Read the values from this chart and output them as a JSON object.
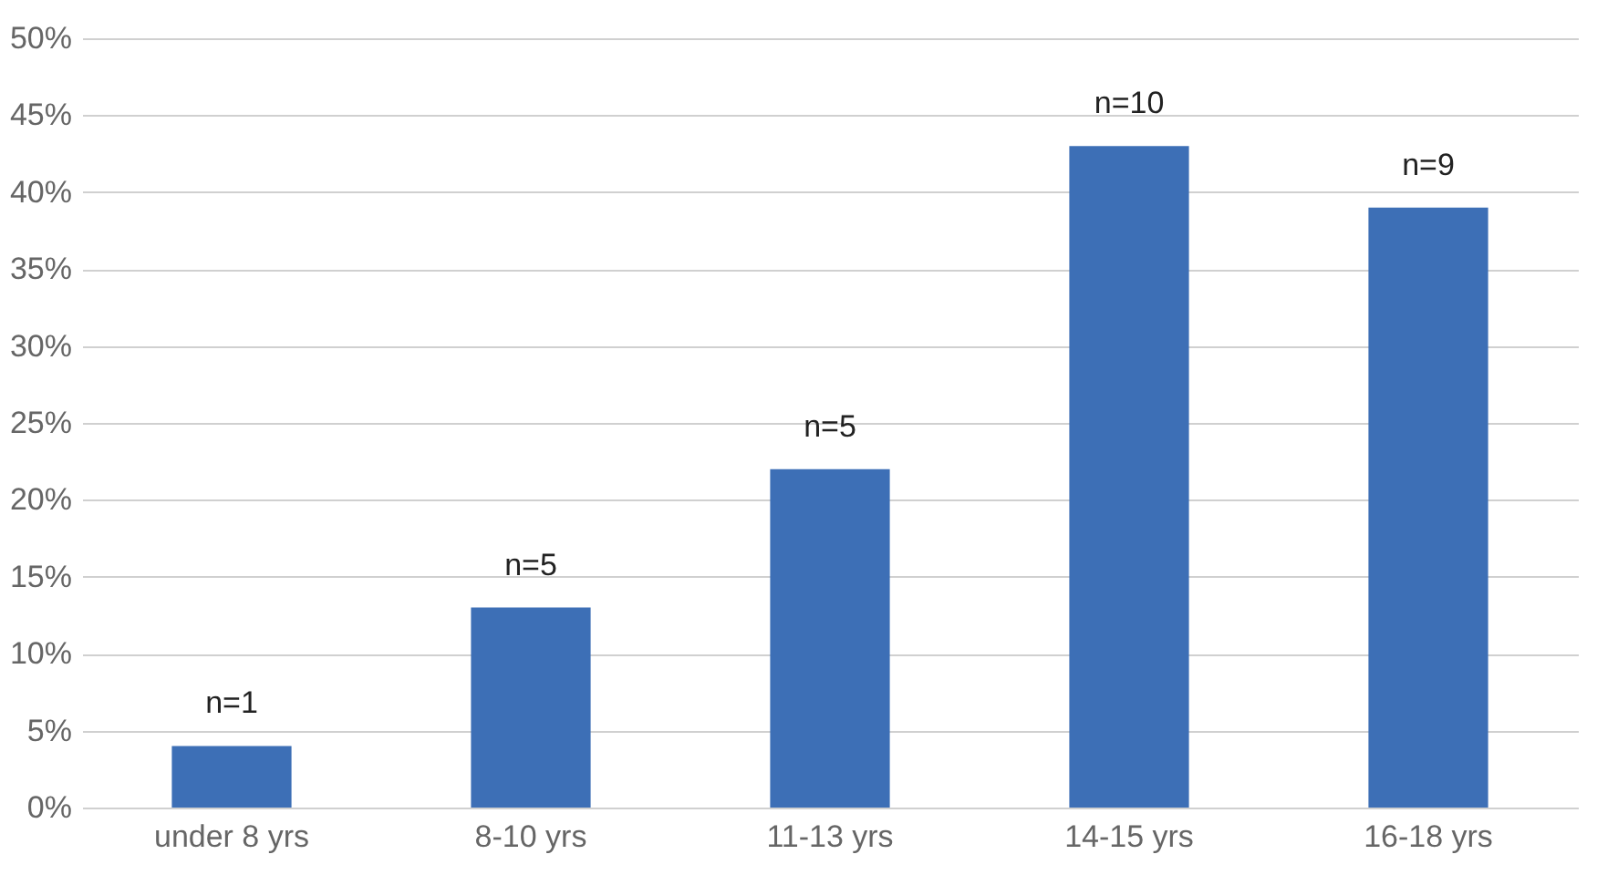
{
  "chart_data": {
    "type": "bar",
    "categories": [
      "under 8 yrs",
      "8-10 yrs",
      "11-13 yrs",
      "14-15 yrs",
      "16-18 yrs"
    ],
    "values": [
      4,
      13,
      22,
      43,
      39
    ],
    "color": "#3d6fb6",
    "ylim": [
      0,
      50
    ],
    "yticks": [
      {
        "value": 0,
        "label": "0%"
      },
      {
        "value": 5,
        "label": "5%"
      },
      {
        "value": 10,
        "label": "10%"
      },
      {
        "value": 15,
        "label": "15%"
      },
      {
        "value": 20,
        "label": "20%"
      },
      {
        "value": 25,
        "label": "25%"
      },
      {
        "value": 30,
        "label": "30%"
      },
      {
        "value": 35,
        "label": "35%"
      },
      {
        "value": 40,
        "label": "40%"
      },
      {
        "value": 45,
        "label": "45%"
      },
      {
        "value": 50,
        "label": "50%"
      }
    ],
    "grid": "y",
    "annotations": [
      {
        "text": "n=1",
        "x": "under 8 yrs",
        "y": 4
      },
      {
        "text": "n=5",
        "x": "8-10 yrs",
        "y": 13
      },
      {
        "text": "n=5",
        "x": "11-13 yrs",
        "y": 22
      },
      {
        "text": "n=10",
        "x": "14-15 yrs",
        "y": 43
      },
      {
        "text": "n=9",
        "x": "16-18 yrs",
        "y": 39
      }
    ]
  }
}
